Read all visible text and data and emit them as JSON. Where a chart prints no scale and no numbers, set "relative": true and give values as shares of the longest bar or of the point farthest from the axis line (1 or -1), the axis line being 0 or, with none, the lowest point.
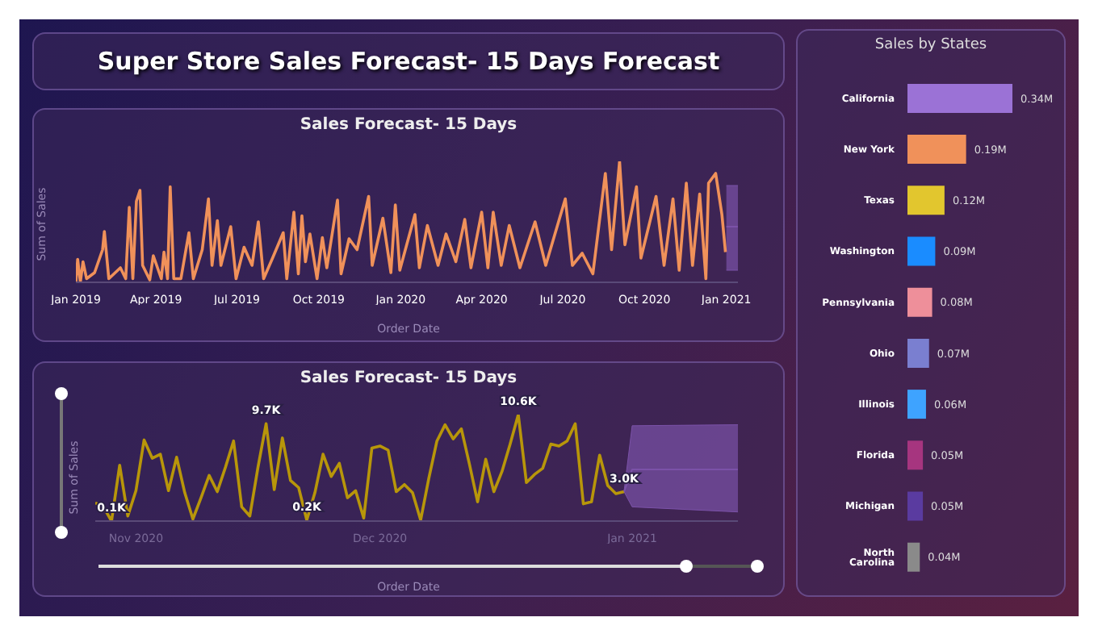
{
  "chart_data": [
    {
      "type": "other",
      "title": "Super Store Sales Forecast- 15 Days Forecast"
    },
    {
      "type": "line",
      "title": "Sales Forecast- 15 Days",
      "xlabel": "Order Date",
      "ylabel": "Sum of Sales",
      "relative": true,
      "grid": false,
      "legend": false,
      "xlim": [
        "2019-01-01",
        "2021-01-14"
      ],
      "xticks": [
        {
          "value": "2019-01-01",
          "label": "Jan 2019"
        },
        {
          "value": "2019-04-01",
          "label": "Apr 2019"
        },
        {
          "value": "2019-07-01",
          "label": "Jul 2019"
        },
        {
          "value": "2019-10-01",
          "label": "Oct 2019"
        },
        {
          "value": "2020-01-01",
          "label": "Jan 2020"
        },
        {
          "value": "2020-04-01",
          "label": "Apr 2020"
        },
        {
          "value": "2020-07-01",
          "label": "Jul 2020"
        },
        {
          "value": "2020-10-01",
          "label": "Oct 2020"
        },
        {
          "value": "2021-01-01",
          "label": "Jan 2021"
        }
      ],
      "series": [
        {
          "color": "#f0915a",
          "x": [
            "2019-01-01",
            "2019-01-03",
            "2019-01-06",
            "2019-01-09",
            "2019-01-13",
            "2019-01-22",
            "2019-01-31",
            "2019-02-02",
            "2019-02-07",
            "2019-02-20",
            "2019-02-26",
            "2019-03-02",
            "2019-03-06",
            "2019-03-10",
            "2019-03-14",
            "2019-03-17",
            "2019-03-25",
            "2019-03-29",
            "2019-04-07",
            "2019-04-10",
            "2019-04-14",
            "2019-04-17",
            "2019-04-21",
            "2019-04-29",
            "2019-05-08",
            "2019-05-13",
            "2019-05-23",
            "2019-05-30",
            "2019-06-03",
            "2019-06-09",
            "2019-06-13",
            "2019-06-24",
            "2019-06-30",
            "2019-07-09",
            "2019-07-18",
            "2019-07-25",
            "2019-07-31",
            "2019-08-10",
            "2019-08-22",
            "2019-08-26",
            "2019-09-03",
            "2019-09-08",
            "2019-09-12",
            "2019-09-16",
            "2019-09-21",
            "2019-09-29",
            "2019-10-05",
            "2019-10-10",
            "2019-10-22",
            "2019-10-26",
            "2019-11-04",
            "2019-11-13",
            "2019-11-26",
            "2019-11-30",
            "2019-12-12",
            "2019-12-21",
            "2019-12-26",
            "2019-12-31",
            "2020-01-17",
            "2020-01-22",
            "2020-01-31",
            "2020-02-12",
            "2020-02-21",
            "2020-03-03",
            "2020-03-13",
            "2020-03-20",
            "2020-04-01",
            "2020-04-08",
            "2020-04-14",
            "2020-04-23",
            "2020-05-02",
            "2020-05-14",
            "2020-05-31",
            "2020-06-12",
            "2020-07-04",
            "2020-07-12",
            "2020-07-23",
            "2020-08-04",
            "2020-08-18",
            "2020-08-25",
            "2020-09-03",
            "2020-09-09",
            "2020-09-22",
            "2020-09-27",
            "2020-10-14",
            "2020-10-23",
            "2020-11-02",
            "2020-11-09",
            "2020-11-17",
            "2020-11-24",
            "2020-12-02",
            "2020-12-09",
            "2020-12-12",
            "2020-12-20",
            "2020-12-27",
            "2020-12-31"
          ],
          "values": [
            0,
            0.19,
            0,
            0.17,
            0.03,
            0.08,
            0.27,
            0.42,
            0.03,
            0.12,
            0.03,
            0.62,
            0.03,
            0.67,
            0.76,
            0.14,
            0.02,
            0.22,
            0.03,
            0.25,
            0.03,
            0.79,
            0.03,
            0.03,
            0.41,
            0.03,
            0.27,
            0.69,
            0.14,
            0.51,
            0.14,
            0.46,
            0.03,
            0.29,
            0.14,
            0.5,
            0.03,
            0.2,
            0.41,
            0.03,
            0.58,
            0.07,
            0.55,
            0.17,
            0.4,
            0.03,
            0.37,
            0.12,
            0.68,
            0.07,
            0.36,
            0.27,
            0.71,
            0.14,
            0.53,
            0.08,
            0.64,
            0.1,
            0.56,
            0.12,
            0.47,
            0.14,
            0.4,
            0.17,
            0.52,
            0.12,
            0.58,
            0.12,
            0.58,
            0.14,
            0.47,
            0.12,
            0.5,
            0.14,
            0.69,
            0.14,
            0.24,
            0.07,
            0.9,
            0.27,
            1,
            0.31,
            0.79,
            0.2,
            0.71,
            0.14,
            0.69,
            0.1,
            0.82,
            0.14,
            0.73,
            0.03,
            0.82,
            0.9,
            0.56,
            0.25
          ]
        },
        {
          "color": "#7b52a8",
          "x": [
            "2021-01-01",
            "2021-01-14"
          ],
          "values": [
            0.46,
            0.46
          ],
          "lower": [
            0.1,
            0.1
          ],
          "upper": [
            0.8,
            0.8
          ]
        }
      ]
    },
    {
      "type": "line",
      "title": "Sales Forecast- 15 Days",
      "xlabel": "Order Date",
      "ylabel": "Sum of Sales",
      "tick_labels": "x",
      "grid": false,
      "legend": false,
      "xlim": [
        "2020-10-27",
        "2021-01-14"
      ],
      "xticks": [
        {
          "value": "2020-11-01",
          "label": "Nov 2020"
        },
        {
          "value": "2020-12-01",
          "label": "Dec 2020"
        },
        {
          "value": "2021-01-01",
          "label": "Jan 2021"
        }
      ],
      "series": [
        {
          "color": "#b8960a",
          "x": [
            "2020-10-27",
            "2020-10-28",
            "2020-10-29",
            "2020-10-30",
            "2020-10-31",
            "2020-11-01",
            "2020-11-02",
            "2020-11-03",
            "2020-11-04",
            "2020-11-05",
            "2020-11-06",
            "2020-11-07",
            "2020-11-08",
            "2020-11-09",
            "2020-11-10",
            "2020-11-11",
            "2020-11-12",
            "2020-11-13",
            "2020-11-14",
            "2020-11-15",
            "2020-11-16",
            "2020-11-17",
            "2020-11-18",
            "2020-11-19",
            "2020-11-20",
            "2020-11-21",
            "2020-11-22",
            "2020-11-23",
            "2020-11-24",
            "2020-11-25",
            "2020-11-26",
            "2020-11-27",
            "2020-11-28",
            "2020-11-29",
            "2020-11-30",
            "2020-12-01",
            "2020-12-02",
            "2020-12-03",
            "2020-12-04",
            "2020-12-05",
            "2020-12-06",
            "2020-12-07",
            "2020-12-08",
            "2020-12-09",
            "2020-12-10",
            "2020-12-11",
            "2020-12-12",
            "2020-12-13",
            "2020-12-14",
            "2020-12-15",
            "2020-12-16",
            "2020-12-17",
            "2020-12-18",
            "2020-12-19",
            "2020-12-20",
            "2020-12-21",
            "2020-12-22",
            "2020-12-23",
            "2020-12-24",
            "2020-12-25",
            "2020-12-26",
            "2020-12-27",
            "2020-12-28",
            "2020-12-29",
            "2020-12-30",
            "2020-12-31"
          ],
          "values": [
            1.9,
            1.5,
            0.1,
            5.6,
            0.6,
            3.1,
            8.1,
            6.3,
            6.7,
            3.1,
            6.4,
            2.9,
            0.3,
            2.4,
            4.6,
            3.0,
            5.4,
            8.0,
            1.5,
            0.6,
            5.4,
            9.7,
            3.2,
            8.3,
            4.1,
            3.4,
            0.2,
            2.9,
            6.7,
            4.5,
            5.8,
            2.4,
            3.1,
            0.4,
            7.3,
            7.5,
            7.1,
            3.0,
            3.7,
            2.9,
            0.2,
            4.3,
            8.0,
            9.6,
            8.2,
            9.2,
            5.7,
            2.0,
            6.2,
            3.0,
            5.0,
            7.7,
            10.6,
            3.9,
            4.7,
            5.3,
            7.7,
            7.5,
            8.0,
            9.7,
            1.8,
            2.0,
            6.6,
            3.6,
            2.8,
            3.0
          ],
          "value_labels": [
            null,
            null,
            "0.1K",
            null,
            null,
            null,
            null,
            null,
            null,
            null,
            null,
            null,
            null,
            null,
            null,
            null,
            null,
            null,
            null,
            null,
            null,
            "9.7K",
            null,
            null,
            null,
            null,
            "0.2K",
            null,
            null,
            null,
            null,
            null,
            null,
            null,
            null,
            null,
            null,
            null,
            null,
            null,
            null,
            null,
            null,
            null,
            null,
            null,
            null,
            null,
            null,
            null,
            null,
            null,
            "10.6K",
            null,
            null,
            null,
            null,
            null,
            null,
            null,
            null,
            null,
            null,
            null,
            null,
            "3.0K"
          ]
        },
        {
          "color": "#7b52a8",
          "x": [
            "2020-12-31",
            "2021-01-01",
            "2021-01-14"
          ],
          "values": [
            3.0,
            5.2,
            5.2
          ],
          "lower": [
            3.0,
            1.5,
            1.0
          ],
          "upper": [
            3.0,
            9.5,
            9.6
          ]
        }
      ]
    },
    {
      "type": "bar",
      "orientation": "horizontal",
      "title": "Sales by States",
      "tick_labels": "y",
      "grid": false,
      "legend": false,
      "categories": [
        "California",
        "New York",
        "Texas",
        "Washington",
        "Pennsylvania",
        "Ohio",
        "Illinois",
        "Florida",
        "Michigan",
        "North Carolina"
      ],
      "values": [
        0.34,
        0.19,
        0.12,
        0.09,
        0.08,
        0.07,
        0.06,
        0.05,
        0.05,
        0.04
      ],
      "colors": [
        "#9b72d6",
        "#f0915a",
        "#e2c62e",
        "#1a8cff",
        "#ee8f9a",
        "#7a7fd0",
        "#3ea3ff",
        "#a6357f",
        "#5a3ba0",
        "#8a8a8a"
      ],
      "value_labels": [
        "0.34M",
        "0.19M",
        "0.12M",
        "0.09M",
        "0.08M",
        "0.07M",
        "0.06M",
        "0.05M",
        "0.05M",
        "0.04M"
      ]
    }
  ]
}
